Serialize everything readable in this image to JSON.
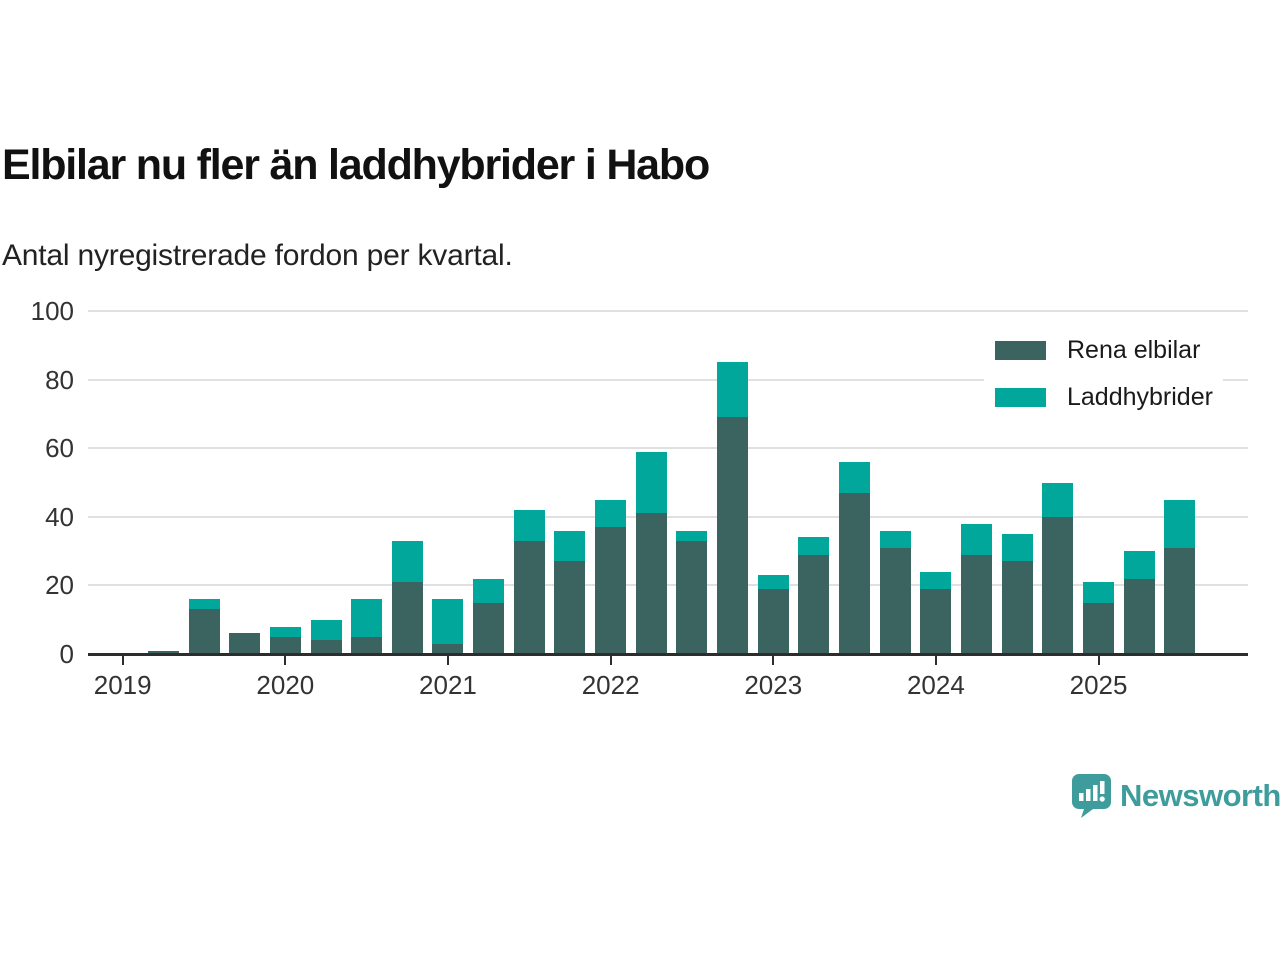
{
  "chart_data": {
    "type": "bar",
    "stacked": true,
    "title": "Elbilar nu fler än laddhybrider i Habo",
    "subtitle": "Antal nyregistrerade fordon per kvartal.",
    "categories": [
      "2019 Q1",
      "2019 Q2",
      "2019 Q3",
      "2019 Q4",
      "2020 Q1",
      "2020 Q2",
      "2020 Q3",
      "2020 Q4",
      "2021 Q1",
      "2021 Q2",
      "2021 Q3",
      "2021 Q4",
      "2022 Q1",
      "2022 Q2",
      "2022 Q3",
      "2022 Q4",
      "2023 Q1",
      "2023 Q2",
      "2023 Q3",
      "2023 Q4",
      "2024 Q1",
      "2024 Q2",
      "2024 Q3",
      "2024 Q4",
      "2025 Q1",
      "2025 Q2",
      "2025 Q3"
    ],
    "series": [
      {
        "name": "Rena elbilar",
        "color": "#3B6360",
        "values": [
          0,
          1,
          13,
          6,
          5,
          4,
          5,
          21,
          3,
          15,
          33,
          27,
          37,
          41,
          33,
          69,
          19,
          29,
          47,
          31,
          19,
          29,
          27,
          40,
          15,
          22,
          31
        ]
      },
      {
        "name": "Laddhybrider",
        "color": "#00A79A",
        "values": [
          0,
          0,
          3,
          0,
          3,
          6,
          11,
          12,
          13,
          7,
          9,
          9,
          8,
          18,
          3,
          16,
          4,
          5,
          9,
          5,
          5,
          9,
          8,
          10,
          6,
          8,
          14
        ]
      }
    ],
    "xlabel": "",
    "ylabel": "",
    "year_ticks": [
      "2019",
      "2020",
      "2021",
      "2022",
      "2023",
      "2024",
      "2025"
    ],
    "ylim": [
      0,
      100
    ],
    "yticks": [
      0,
      20,
      40,
      60,
      80,
      100
    ],
    "grid": "horizontal",
    "legend_position": "top-right"
  },
  "colors": {
    "elbilar": "#3B6360",
    "laddhybrider": "#00A79A",
    "gridline": "#E0E0E0",
    "axis": "#2D2D2D",
    "tick_text": "#333333",
    "brand": "#3E9C9D"
  },
  "branding": {
    "wordmark": "Newsworthy",
    "icon": "newsworthy-speech-bubble-bar-chart-icon"
  }
}
